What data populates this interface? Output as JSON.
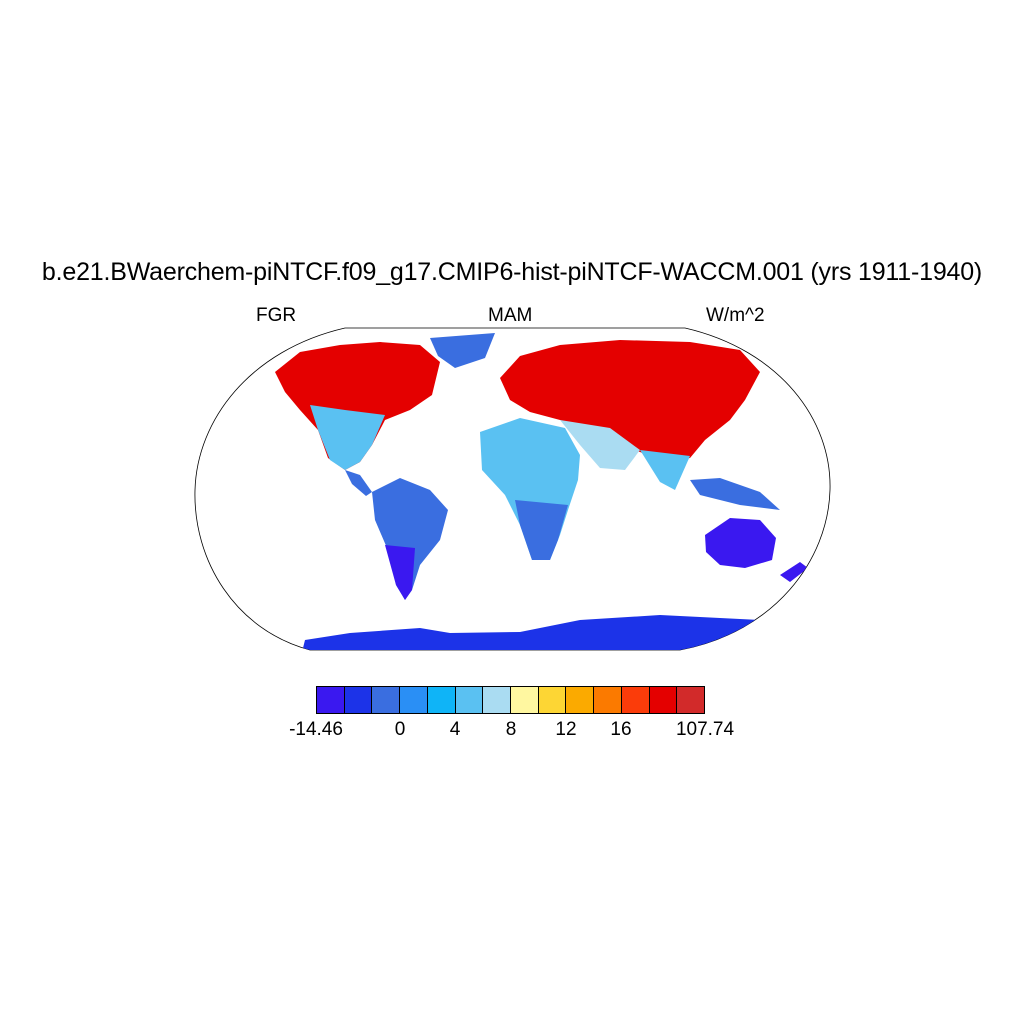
{
  "title": "b.e21.BWaerchem-piNTCF.f09_g17.CMIP6-hist-piNTCF-WACCM.001 (yrs 1911-1940)",
  "left_label": "FGR",
  "center_label": "MAM",
  "right_label": "W/m^2",
  "colorbar": {
    "colors": [
      "#3a18f0",
      "#1c33e8",
      "#3a6ee0",
      "#2a8ff5",
      "#0fb4f7",
      "#5ac1f2",
      "#aadcf2",
      "#fff7a0",
      "#fdd634",
      "#fbaa00",
      "#fb7a00",
      "#fb3c0a",
      "#e40000",
      "#d22a2a"
    ],
    "labels": [
      "-14.46",
      "0",
      "4",
      "8",
      "12",
      "16",
      "107.74"
    ]
  }
}
